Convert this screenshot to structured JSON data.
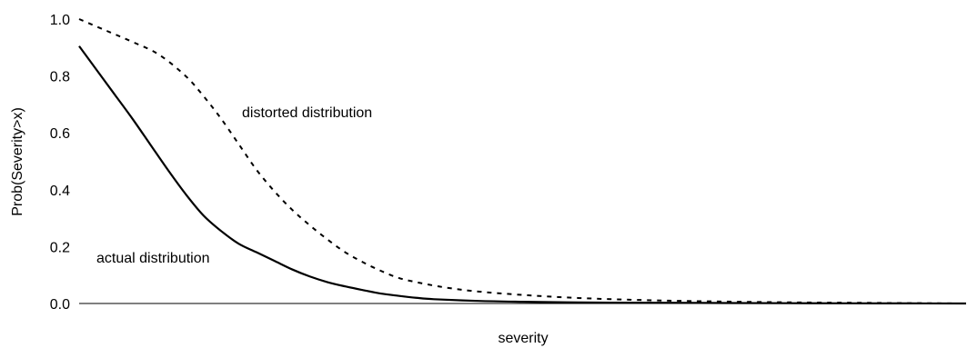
{
  "chart_data": {
    "type": "line",
    "title": "",
    "xlabel": "severity",
    "ylabel": "Prob(Severity>x)",
    "ylim": [
      0,
      1
    ],
    "xlim": [
      0,
      100
    ],
    "yticks": [
      "0.0",
      "0.2",
      "0.4",
      "0.6",
      "0.8",
      "1.0"
    ],
    "grid": false,
    "legend": "none",
    "series": [
      {
        "key": "actual",
        "style": "solid",
        "color": "#000000",
        "x": [
          0,
          2,
          4,
          6,
          8,
          10,
          12,
          14,
          16,
          18,
          20,
          22,
          24,
          26,
          28,
          30,
          32,
          34,
          36,
          38,
          40,
          45,
          50,
          55,
          60,
          70,
          80,
          90,
          100
        ],
        "y": [
          0.905,
          0.82,
          0.735,
          0.65,
          0.56,
          0.47,
          0.385,
          0.31,
          0.255,
          0.21,
          0.18,
          0.15,
          0.12,
          0.095,
          0.075,
          0.06,
          0.047,
          0.035,
          0.027,
          0.02,
          0.015,
          0.009,
          0.006,
          0.004,
          0.003,
          0.002,
          0.001,
          0.0005,
          0.0
        ]
      },
      {
        "key": "distorted",
        "style": "dashed",
        "color": "#000000",
        "x": [
          0,
          3,
          6,
          9,
          12,
          14,
          16,
          18,
          20,
          22,
          24,
          26,
          28,
          30,
          32,
          34,
          36,
          38,
          40,
          42,
          45,
          50,
          55,
          60,
          65,
          70,
          80,
          90,
          100
        ],
        "y": [
          1.0,
          0.96,
          0.92,
          0.875,
          0.8,
          0.73,
          0.65,
          0.56,
          0.47,
          0.395,
          0.33,
          0.275,
          0.225,
          0.18,
          0.145,
          0.115,
          0.09,
          0.075,
          0.063,
          0.053,
          0.042,
          0.03,
          0.021,
          0.015,
          0.011,
          0.008,
          0.004,
          0.002,
          0.0
        ]
      }
    ],
    "annotations": [
      {
        "text": "distorted distribution",
        "series": "distorted"
      },
      {
        "text": "actual distribution",
        "series": "actual"
      }
    ]
  }
}
